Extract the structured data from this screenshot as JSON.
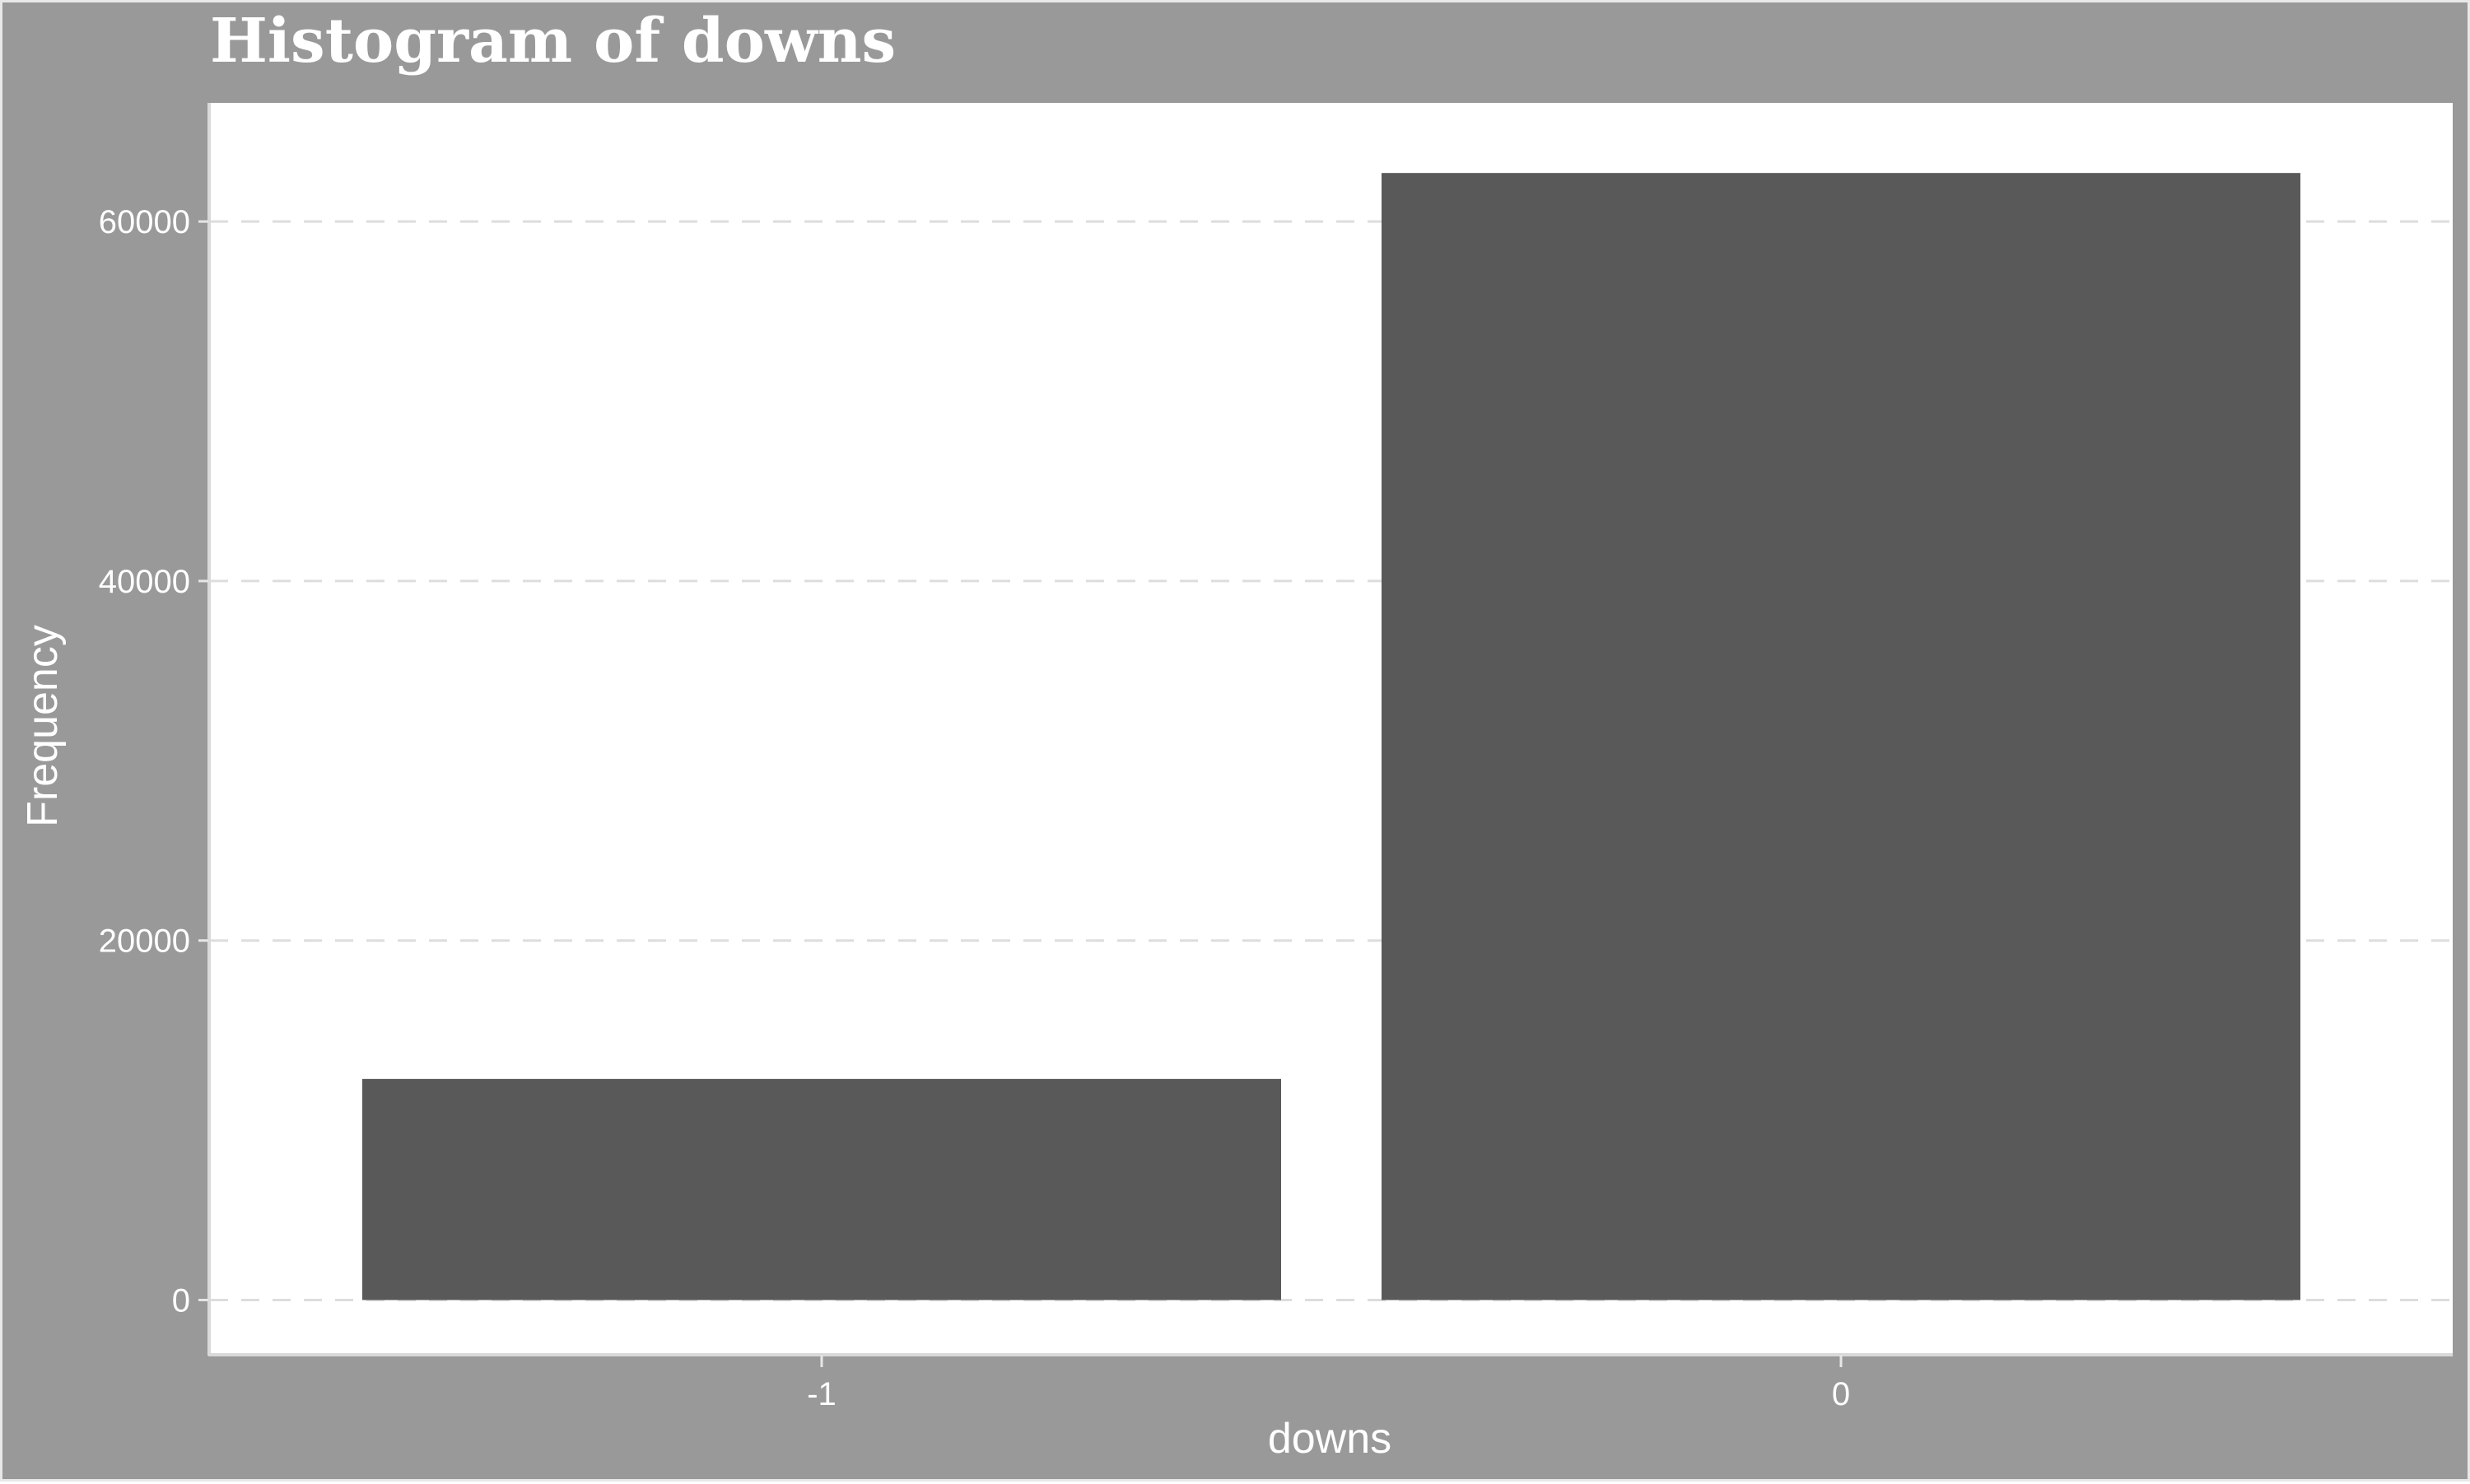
{
  "chart_data": {
    "type": "bar",
    "title": "Histogram of downs",
    "xlabel": "downs",
    "ylabel": "Frequency",
    "categories": [
      "-1",
      "0"
    ],
    "values": [
      12300,
      62700
    ],
    "ylim": [
      -3000,
      66600
    ],
    "yticks": [
      0,
      20000,
      40000,
      60000
    ],
    "ytick_labels": [
      "0",
      "20000",
      "40000",
      "60000"
    ],
    "grid": "horizontal dashed",
    "legend": "none",
    "colors": {
      "background": "#999999",
      "panel": "#ffffff",
      "bar": "#595959",
      "grid": "#dddddd",
      "text": "#ffffff"
    }
  }
}
